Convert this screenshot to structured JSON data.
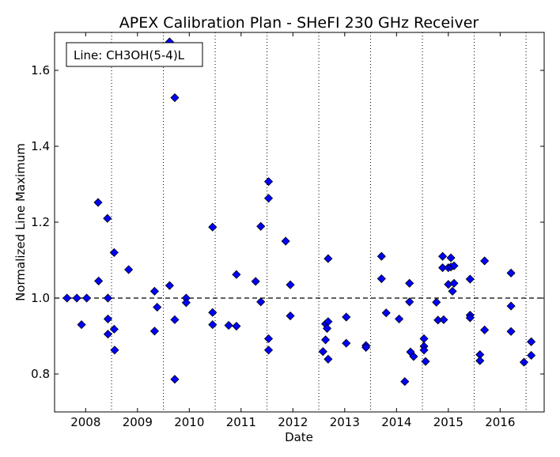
{
  "chart_data": {
    "type": "scatter",
    "title": "APEX Calibration Plan - SHeFI 230 GHz Receiver",
    "xlabel": "Date",
    "ylabel": "Normalized Line Maximum",
    "legend_text": "Line: CH3OH(5-4)L",
    "legend_placement": "top-left",
    "xlim": [
      2007.4,
      2016.85
    ],
    "ylim": [
      0.7,
      1.7
    ],
    "x_ticks": [
      2008,
      2009,
      2010,
      2011,
      2012,
      2013,
      2014,
      2015,
      2016
    ],
    "x_tick_labels": [
      "2008",
      "2009",
      "2010",
      "2011",
      "2012",
      "2013",
      "2014",
      "2015",
      "2016"
    ],
    "y_ticks": [
      0.8,
      1.0,
      1.2,
      1.4,
      1.6
    ],
    "y_tick_labels": [
      "0.8",
      "1.0",
      "1.2",
      "1.4",
      "1.6"
    ],
    "vertical_dotted_lines": [
      2008.5,
      2009.5,
      2010.5,
      2011.5,
      2012.5,
      2013.5,
      2014.5,
      2015.5,
      2016.5
    ],
    "reference_line_y": 1.0,
    "marker_color": "#0000ff",
    "points": [
      [
        2007.64,
        1.0
      ],
      [
        2007.83,
        1.0
      ],
      [
        2007.92,
        0.93
      ],
      [
        2008.02,
        1.0
      ],
      [
        2008.24,
        1.252
      ],
      [
        2008.25,
        1.045
      ],
      [
        2008.42,
        1.21
      ],
      [
        2008.43,
        1.0
      ],
      [
        2008.43,
        0.945
      ],
      [
        2008.43,
        0.905
      ],
      [
        2008.55,
        1.12
      ],
      [
        2008.55,
        0.918
      ],
      [
        2008.56,
        0.863
      ],
      [
        2008.83,
        1.075
      ],
      [
        2009.33,
        1.018
      ],
      [
        2009.33,
        0.913
      ],
      [
        2009.38,
        0.976
      ],
      [
        2009.62,
        1.033
      ],
      [
        2009.62,
        1.675
      ],
      [
        2009.72,
        1.528
      ],
      [
        2009.72,
        0.943
      ],
      [
        2009.72,
        0.786
      ],
      [
        2009.94,
        1.0
      ],
      [
        2009.94,
        0.988
      ],
      [
        2010.45,
        1.187
      ],
      [
        2010.45,
        0.962
      ],
      [
        2010.45,
        0.93
      ],
      [
        2010.76,
        0.928
      ],
      [
        2010.91,
        1.062
      ],
      [
        2010.91,
        0.926
      ],
      [
        2011.28,
        1.044
      ],
      [
        2011.38,
        1.189
      ],
      [
        2011.38,
        0.99
      ],
      [
        2011.53,
        1.307
      ],
      [
        2011.53,
        1.263
      ],
      [
        2011.53,
        0.893
      ],
      [
        2011.53,
        0.863
      ],
      [
        2011.86,
        1.15
      ],
      [
        2011.95,
        1.035
      ],
      [
        2011.95,
        0.953
      ],
      [
        2012.58,
        0.859
      ],
      [
        2012.63,
        0.932
      ],
      [
        2012.63,
        0.89
      ],
      [
        2012.66,
        0.92
      ],
      [
        2012.68,
        1.104
      ],
      [
        2012.68,
        0.938
      ],
      [
        2012.68,
        0.839
      ],
      [
        2013.03,
        0.95
      ],
      [
        2013.03,
        0.881
      ],
      [
        2013.41,
        0.875
      ],
      [
        2013.41,
        0.87
      ],
      [
        2013.71,
        1.11
      ],
      [
        2013.71,
        1.051
      ],
      [
        2013.8,
        0.961
      ],
      [
        2014.05,
        0.945
      ],
      [
        2014.16,
        0.78
      ],
      [
        2014.25,
        1.039
      ],
      [
        2014.25,
        0.99
      ],
      [
        2014.27,
        0.858
      ],
      [
        2014.33,
        0.846
      ],
      [
        2014.53,
        0.893
      ],
      [
        2014.53,
        0.873
      ],
      [
        2014.53,
        0.863
      ],
      [
        2014.56,
        0.833
      ],
      [
        2014.77,
        0.989
      ],
      [
        2014.8,
        0.942
      ],
      [
        2014.89,
        1.11
      ],
      [
        2014.89,
        1.08
      ],
      [
        2014.91,
        0.943
      ],
      [
        2015.0,
        1.08
      ],
      [
        2015.0,
        1.036
      ],
      [
        2015.05,
        1.106
      ],
      [
        2015.05,
        1.082
      ],
      [
        2015.08,
        1.018
      ],
      [
        2015.11,
        1.085
      ],
      [
        2015.11,
        1.039
      ],
      [
        2015.42,
        1.05
      ],
      [
        2015.42,
        0.955
      ],
      [
        2015.42,
        0.948
      ],
      [
        2015.61,
        0.851
      ],
      [
        2015.61,
        0.835
      ],
      [
        2015.7,
        1.098
      ],
      [
        2015.7,
        0.916
      ],
      [
        2016.21,
        1.066
      ],
      [
        2016.21,
        0.979
      ],
      [
        2016.21,
        0.912
      ],
      [
        2016.46,
        0.831
      ],
      [
        2016.6,
        0.885
      ],
      [
        2016.6,
        0.849
      ]
    ]
  }
}
